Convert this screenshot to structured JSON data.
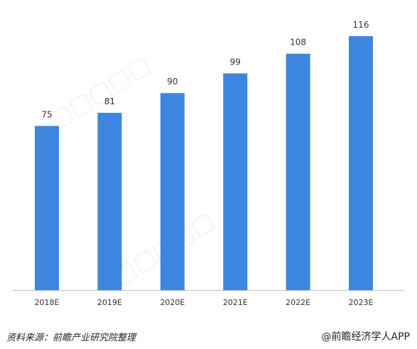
{
  "colors": {
    "bar": "#3d86e0",
    "axis": "#bfbfbf",
    "text": "#333333"
  },
  "chart_data": {
    "type": "bar",
    "categories": [
      "2018E",
      "2019E",
      "2020E",
      "2021E",
      "2022E",
      "2023E"
    ],
    "values": [
      75,
      81,
      90,
      99,
      108,
      116
    ],
    "data_labels": [
      "75",
      "81",
      "90",
      "99",
      "108",
      "116"
    ],
    "title": "",
    "xlabel": "",
    "ylabel": "",
    "ylim": [
      0,
      116
    ],
    "grid": false,
    "legend": "none"
  },
  "footer": {
    "source": "资料来源：前瞻产业研究院整理",
    "credit": "@前瞻经济学人APP"
  }
}
